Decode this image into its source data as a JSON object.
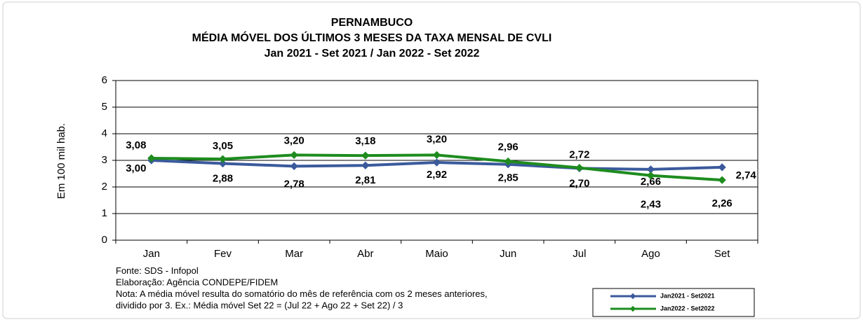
{
  "chart_data": {
    "type": "line",
    "title": "PERNAMBUCO",
    "subtitle": [
      "MÉDIA MÓVEL DOS ÚLTIMOS 3 MESES DA TAXA MENSAL DE CVLI",
      "Jan 2021 - Set 2021 / Jan 2022 - Set 2022"
    ],
    "y_label": "Em 100 mil hab.",
    "categories": [
      "Jan",
      "Fev",
      "Mar",
      "Abr",
      "Maio",
      "Jun",
      "Jul",
      "Ago",
      "Set"
    ],
    "series": [
      {
        "name": "Jan2021 - Set2021",
        "color": "#3a5a9c",
        "label_color": "#2e3192",
        "values": [
          3.0,
          2.88,
          2.78,
          2.81,
          2.92,
          2.85,
          2.7,
          2.66,
          2.74
        ],
        "value_labels": [
          "3,00",
          "2,88",
          "2,78",
          "2,81",
          "2,92",
          "2,85",
          "2,70",
          "2,66",
          "2,74"
        ]
      },
      {
        "name": "Jan2022 - Set2022",
        "color": "#1e8c1e",
        "label_color": "#1e8c1e",
        "values": [
          3.08,
          3.05,
          3.2,
          3.18,
          3.2,
          2.96,
          2.72,
          2.43,
          2.26
        ],
        "value_labels": [
          "3,08",
          "3,05",
          "3,20",
          "3,18",
          "3,20",
          "2,96",
          "2,72",
          "2,43",
          "2,26"
        ]
      }
    ],
    "ylim": [
      0,
      6
    ],
    "yticks": [
      0,
      1,
      2,
      3,
      4,
      5,
      6
    ],
    "grid": true,
    "legend": "lower right",
    "footnotes": [
      "Fonte: SDS - Infopol",
      "Elaboração: Agência CONDEPE/FIDEM",
      "Nota: A média móvel resulta do somatório do mês de referência com os 2 meses anteriores,",
      "dividido por 3. Ex.: Média móvel Set 22 = (Jul 22 + Ago 22 + Set 22) / 3"
    ]
  }
}
